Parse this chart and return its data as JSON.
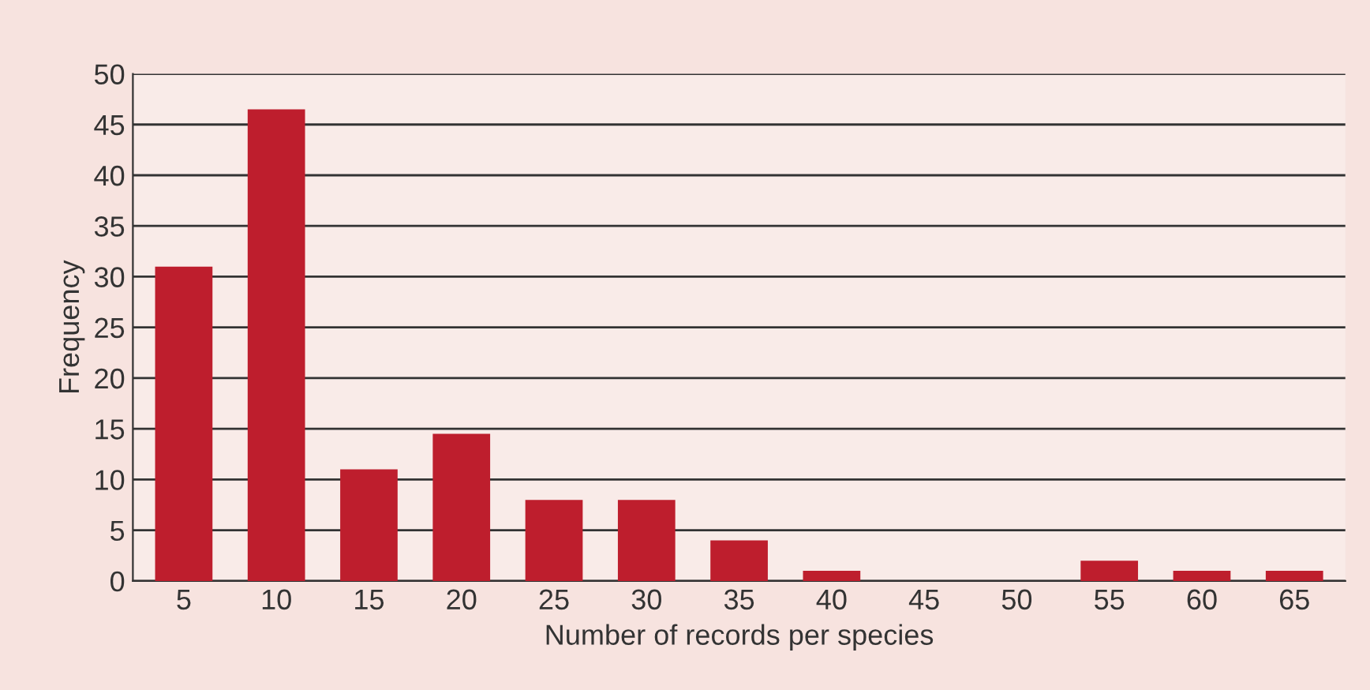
{
  "chart_data": {
    "type": "bar",
    "xlabel": "Number of records per species",
    "ylabel": "Frequency",
    "categories": [
      "5",
      "10",
      "15",
      "20",
      "25",
      "30",
      "35",
      "40",
      "45",
      "50",
      "55",
      "60",
      "65"
    ],
    "values": [
      31,
      46.5,
      11,
      14.5,
      8,
      8,
      4,
      1,
      0,
      0,
      2,
      1,
      1
    ],
    "color": "#be1e2d",
    "ylim": [
      0,
      50
    ],
    "yticks": [
      0,
      5,
      10,
      15,
      20,
      25,
      30,
      35,
      40,
      45,
      50
    ],
    "grid": "y"
  }
}
